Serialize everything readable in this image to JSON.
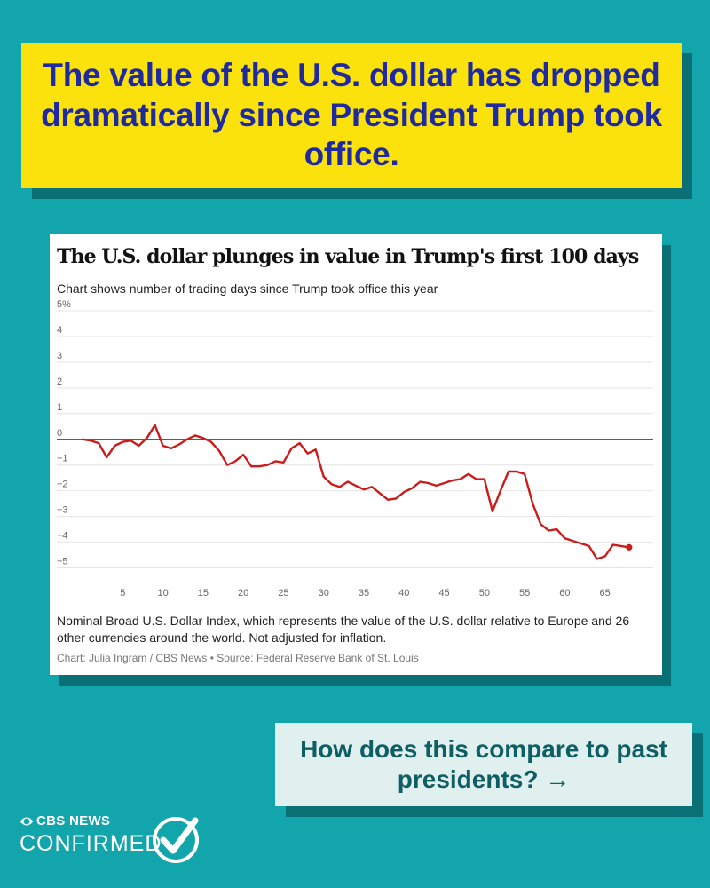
{
  "headline": "The value of the U.S. dollar has dropped dramatically since President Trump took office.",
  "chart_data": {
    "type": "line",
    "title": "The U.S. dollar plunges in value in Trump's first 100 days",
    "subtitle": "Chart shows number of trading days since Trump took office this year",
    "xlabel": "",
    "ylabel": "",
    "xlim": [
      -1,
      71
    ],
    "ylim": [
      -5.5,
      5
    ],
    "x_ticks": [
      5,
      10,
      15,
      20,
      25,
      30,
      35,
      40,
      45,
      50,
      55,
      60,
      65
    ],
    "y_ticks": [
      5,
      4,
      3,
      2,
      1,
      0,
      -1,
      -2,
      -3,
      -4,
      -5
    ],
    "y_tick_labels": [
      "5%",
      "4",
      "3",
      "2",
      "1",
      "0",
      "−1",
      "−2",
      "−3",
      "−4",
      "−5"
    ],
    "series": [
      {
        "name": "Nominal Broad U.S. Dollar Index change",
        "color": "#cc1b1b",
        "x": [
          0,
          1,
          2,
          3,
          4,
          5,
          6,
          7,
          8,
          9,
          10,
          11,
          12,
          13,
          14,
          15,
          16,
          17,
          18,
          19,
          20,
          21,
          22,
          23,
          24,
          25,
          26,
          27,
          28,
          29,
          30,
          31,
          32,
          33,
          34,
          35,
          36,
          37,
          38,
          39,
          40,
          41,
          42,
          43,
          44,
          45,
          46,
          47,
          48,
          49,
          50,
          51,
          52,
          53,
          54,
          55,
          56,
          57,
          58,
          59,
          60,
          61,
          62,
          63,
          64,
          65,
          66,
          67,
          68
        ],
        "values": [
          0,
          -0.05,
          -0.15,
          -0.7,
          -0.25,
          -0.1,
          -0.05,
          -0.25,
          0.05,
          0.55,
          -0.25,
          -0.35,
          -0.2,
          0,
          0.15,
          0.05,
          -0.1,
          -0.45,
          -1,
          -0.85,
          -0.6,
          -1.05,
          -1.05,
          -1,
          -0.85,
          -0.9,
          -0.35,
          -0.15,
          -0.55,
          -0.4,
          -1.45,
          -1.75,
          -1.85,
          -1.65,
          -1.8,
          -1.95,
          -1.85,
          -2.1,
          -2.35,
          -2.3,
          -2.05,
          -1.9,
          -1.65,
          -1.7,
          -1.8,
          -1.7,
          -1.6,
          -1.55,
          -1.35,
          -1.55,
          -1.55,
          -2.8,
          -2,
          -1.25,
          -1.25,
          -1.35,
          -2.5,
          -3.3,
          -3.55,
          -3.5,
          -3.85,
          -3.95,
          -4.05,
          -4.15,
          -4.65,
          -4.55,
          -4.1,
          -4.15,
          -4.2
        ]
      }
    ],
    "endpoint": {
      "x": 68,
      "y": -4.2
    },
    "note": "Nominal Broad U.S. Dollar Index, which represents the value of the U.S. dollar relative to Europe and 26 other currencies around the world. Not adjusted for inflation.",
    "source": "Chart: Julia Ingram / CBS News • Source: Federal Reserve Bank of St. Louis"
  },
  "cta": {
    "text": "How does this compare to past presidents? →"
  },
  "logo": {
    "brand": "CBS NEWS",
    "product": "CONFIRMED"
  }
}
